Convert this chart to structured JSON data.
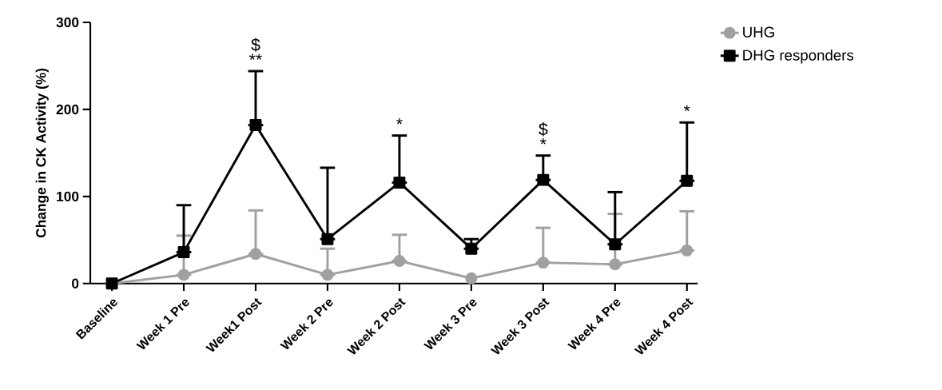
{
  "chart_data": {
    "type": "line",
    "ylabel": "Change in CK Activity (%)",
    "categories": [
      "Baseline",
      "Week 1 Pre",
      "Week1 Post",
      "Week 2 Pre",
      "Week 2 Post",
      "Week 3 Pre",
      "Week 3 Post",
      "Week 4 Pre",
      "Week 4 Post"
    ],
    "series": [
      {
        "name": "UHG",
        "color": "#a0a0a0",
        "marker": "circle",
        "values": [
          0,
          10,
          34,
          10,
          26,
          6,
          24,
          22,
          38
        ],
        "errors": [
          null,
          [
            10,
            55
          ],
          [
            34,
            84
          ],
          [
            10,
            40
          ],
          [
            26,
            56
          ],
          null,
          [
            24,
            64
          ],
          [
            22,
            80
          ],
          [
            38,
            83
          ]
        ]
      },
      {
        "name": "DHG responders",
        "color": "#000000",
        "marker": "square",
        "values": [
          0,
          36,
          182,
          51,
          116,
          40,
          119,
          45,
          118
        ],
        "errors": [
          null,
          [
            36,
            90
          ],
          [
            182,
            244
          ],
          [
            51,
            133
          ],
          [
            116,
            170
          ],
          [
            40,
            51
          ],
          [
            119,
            147
          ],
          [
            45,
            105
          ],
          [
            118,
            185
          ]
        ]
      }
    ],
    "ylim": [
      0,
      300
    ],
    "yticks": [
      0,
      100,
      200,
      300
    ],
    "grid": false,
    "legend": "top right",
    "line_style": "solid",
    "annotations": [
      "**",
      "$",
      "*",
      "*",
      "$",
      "*"
    ]
  }
}
